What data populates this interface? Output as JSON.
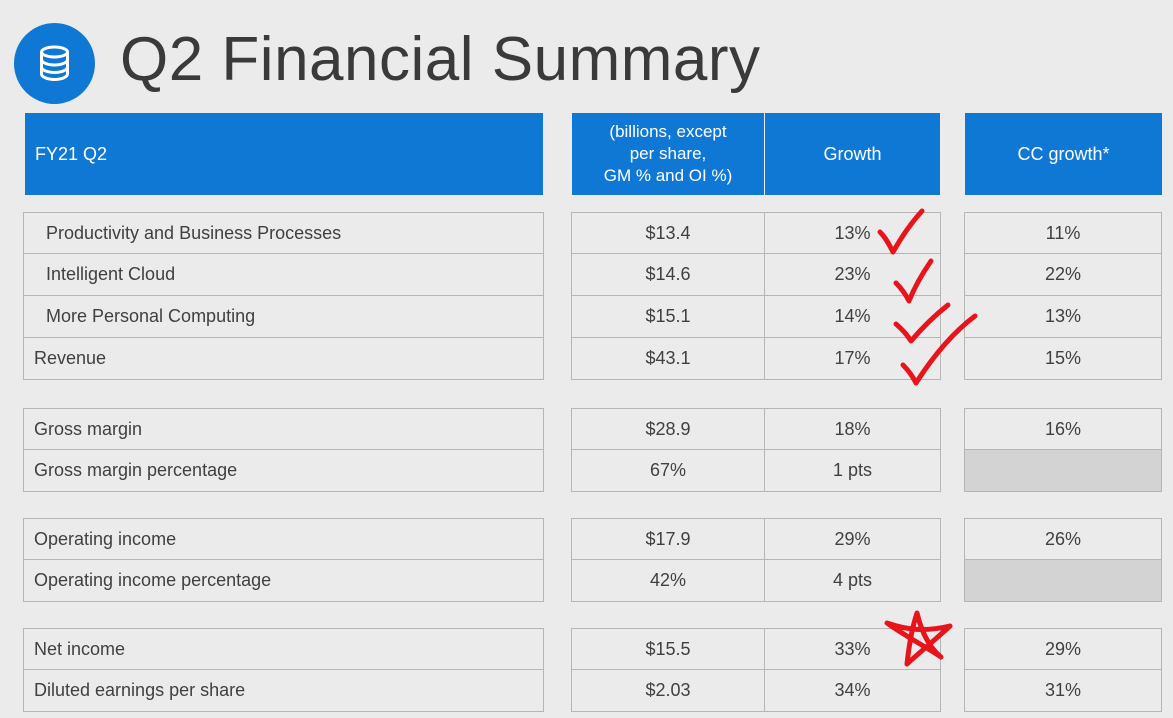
{
  "title": "Q2 Financial Summary",
  "logo_icon": "database-icon",
  "header": {
    "period": "FY21 Q2",
    "units_line1": "(billions, except",
    "units_line2": "per share,",
    "units_line3": "GM % and OI %)",
    "growth": "Growth",
    "cc_growth": "CC growth*"
  },
  "groups": [
    {
      "rows": [
        {
          "label": "Productivity and Business Processes",
          "value": "$13.4",
          "growth": "13%",
          "cc_growth": "11%",
          "indent": true
        },
        {
          "label": "Intelligent Cloud",
          "value": "$14.6",
          "growth": "23%",
          "cc_growth": "22%",
          "indent": true
        },
        {
          "label": "More Personal Computing",
          "value": "$15.1",
          "growth": "14%",
          "cc_growth": "13%",
          "indent": true
        },
        {
          "label": "Revenue",
          "value": "$43.1",
          "growth": "17%",
          "cc_growth": "15%",
          "indent": false
        }
      ]
    },
    {
      "rows": [
        {
          "label": "Gross margin",
          "value": "$28.9",
          "growth": "18%",
          "cc_growth": "16%",
          "indent": false
        },
        {
          "label": "Gross margin percentage",
          "value": "67%",
          "growth": "1 pts",
          "cc_growth": "",
          "indent": false
        }
      ]
    },
    {
      "rows": [
        {
          "label": "Operating income",
          "value": "$17.9",
          "growth": "29%",
          "cc_growth": "26%",
          "indent": false
        },
        {
          "label": "Operating income percentage",
          "value": "42%",
          "growth": "4 pts",
          "cc_growth": "",
          "indent": false
        }
      ]
    },
    {
      "rows": [
        {
          "label": "Net income",
          "value": "$15.5",
          "growth": "33%",
          "cc_growth": "29%",
          "indent": false
        },
        {
          "label": "Diluted earnings per share",
          "value": "$2.03",
          "growth": "34%",
          "cc_growth": "31%",
          "indent": false
        }
      ]
    }
  ],
  "annotations": {
    "color": "#e8141b",
    "checkmarks": 4,
    "star": 1
  }
}
